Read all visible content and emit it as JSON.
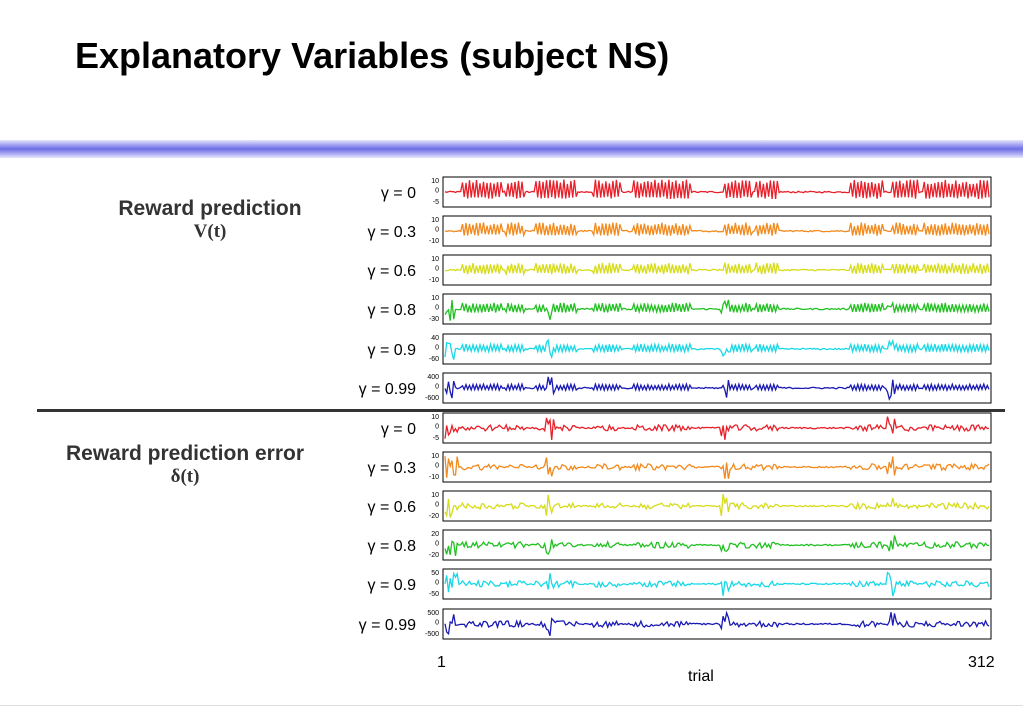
{
  "slide": {
    "title": "Explanatory Variables (subject NS)"
  },
  "groups": [
    {
      "label": "Reward prediction",
      "symbol": "V(t)"
    },
    {
      "label": "Reward prediction error",
      "symbol": "δ(t)"
    }
  ],
  "chart_data": {
    "type": "line",
    "x_range": [
      1,
      312
    ],
    "x_tick_labels": [
      "1",
      "312"
    ],
    "xlabel": "trial",
    "panels": [
      {
        "group": 0,
        "gamma_label": "γ = 0",
        "color": "#e8202a",
        "ticks": [
          "10",
          "0",
          "-5"
        ],
        "ylim": [
          -5,
          10
        ]
      },
      {
        "group": 0,
        "gamma_label": "γ = 0.3",
        "color": "#f28a1e",
        "ticks": [
          "10",
          "0",
          "-10"
        ],
        "ylim": [
          -10,
          10
        ]
      },
      {
        "group": 0,
        "gamma_label": "γ = 0.6",
        "color": "#d6dc1a",
        "ticks": [
          "10",
          "0",
          "-10"
        ],
        "ylim": [
          -10,
          10
        ]
      },
      {
        "group": 0,
        "gamma_label": "γ = 0.8",
        "color": "#22c022",
        "ticks": [
          "10",
          "0",
          "-30"
        ],
        "ylim": [
          -30,
          10
        ]
      },
      {
        "group": 0,
        "gamma_label": "γ = 0.9",
        "color": "#19d8e6",
        "ticks": [
          "40",
          "0",
          "-60"
        ],
        "ylim": [
          -60,
          40
        ]
      },
      {
        "group": 0,
        "gamma_label": "γ = 0.99",
        "color": "#1a1ab4",
        "ticks": [
          "400",
          "0",
          "-600"
        ],
        "ylim": [
          -600,
          400
        ]
      },
      {
        "group": 1,
        "gamma_label": "γ = 0",
        "color": "#e8202a",
        "ticks": [
          "10",
          "0",
          "-5"
        ],
        "ylim": [
          -5,
          10
        ]
      },
      {
        "group": 1,
        "gamma_label": "γ = 0.3",
        "color": "#f28a1e",
        "ticks": [
          "10",
          "0",
          "-10"
        ],
        "ylim": [
          -10,
          10
        ]
      },
      {
        "group": 1,
        "gamma_label": "γ = 0.6",
        "color": "#d6dc1a",
        "ticks": [
          "10",
          "0",
          "-20"
        ],
        "ylim": [
          -20,
          10
        ]
      },
      {
        "group": 1,
        "gamma_label": "γ = 0.8",
        "color": "#22c022",
        "ticks": [
          "20",
          "0",
          "-20"
        ],
        "ylim": [
          -20,
          20
        ]
      },
      {
        "group": 1,
        "gamma_label": "γ = 0.9",
        "color": "#19d8e6",
        "ticks": [
          "50",
          "0",
          "-50"
        ],
        "ylim": [
          -50,
          50
        ]
      },
      {
        "group": 1,
        "gamma_label": "γ = 0.99",
        "color": "#1a1ab4",
        "ticks": [
          "500",
          "0",
          "-500"
        ],
        "ylim": [
          -500,
          500
        ]
      }
    ]
  }
}
